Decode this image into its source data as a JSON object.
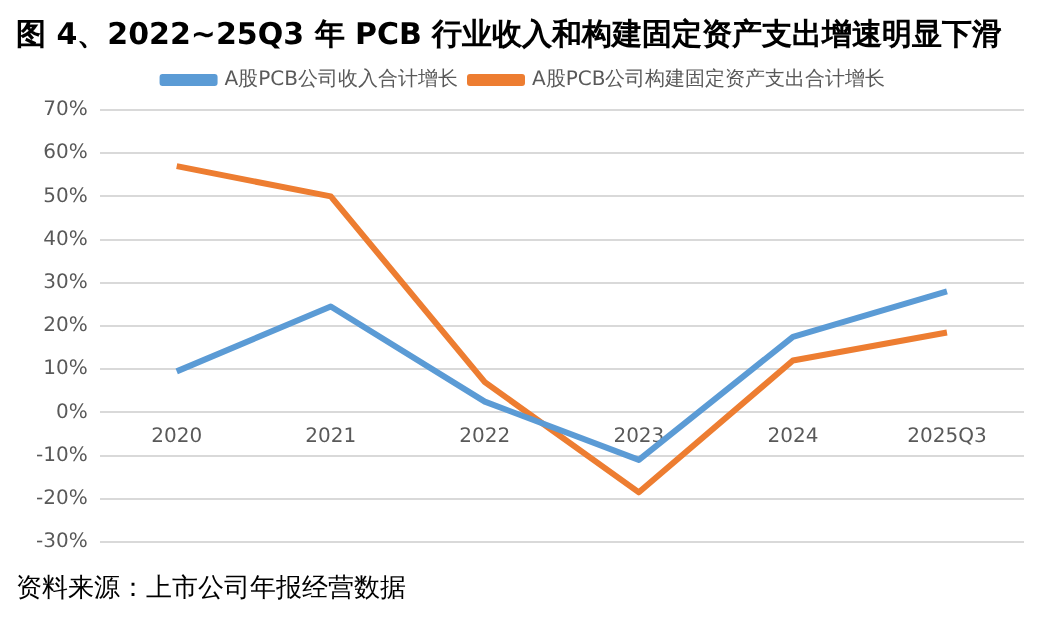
{
  "chart_data": {
    "type": "line",
    "title": "图 4、2022~25Q3 年 PCB 行业收入和构建固定资产支出增速明显下滑",
    "categories": [
      "2020",
      "2021",
      "2022",
      "2023",
      "2024",
      "2025Q3"
    ],
    "series": [
      {
        "name": "A股PCB公司收入合计增长",
        "color": "#5b9bd5",
        "values": [
          9.5,
          24.5,
          2.5,
          -11,
          17.5,
          28
        ]
      },
      {
        "name": "A股PCB公司构建固定资产支出合计增长",
        "color": "#ed7d31",
        "values": [
          57,
          50,
          7,
          -18.5,
          12,
          18.5
        ]
      }
    ],
    "ylim": [
      -30,
      70
    ],
    "yticks": [
      {
        "value": -30,
        "label": "-30%"
      },
      {
        "value": -20,
        "label": "-20%"
      },
      {
        "value": -10,
        "label": "-10%"
      },
      {
        "value": 0,
        "label": "0%"
      },
      {
        "value": 10,
        "label": "10%"
      },
      {
        "value": 20,
        "label": "20%"
      },
      {
        "value": 30,
        "label": "30%"
      },
      {
        "value": 40,
        "label": "40%"
      },
      {
        "value": 50,
        "label": "50%"
      },
      {
        "value": 60,
        "label": "60%"
      },
      {
        "value": 70,
        "label": "70%"
      }
    ],
    "grid": "y",
    "legend": "top",
    "marker": "none",
    "line_style": "solid",
    "annotations": [
      "资料来源：上市公司年报经营数据"
    ]
  }
}
